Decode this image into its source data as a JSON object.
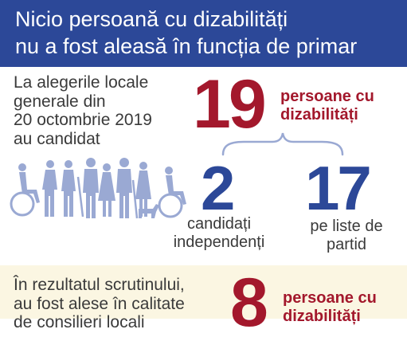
{
  "header": {
    "line1": "Nicio persoană cu dizabilități",
    "line2": "nu a fost aleasă în funcția de primar"
  },
  "intro": {
    "line1": "La alegerile locale",
    "line2": "generale din",
    "line3": "20 octombrie 2019",
    "line4": "au candidat"
  },
  "total": {
    "number": "19",
    "label_line1": "persoane cu",
    "label_line2": "dizabilități"
  },
  "independent": {
    "number": "2",
    "label_line1": "candidați",
    "label_line2": "independenți"
  },
  "party": {
    "number": "17",
    "label_line1": "pe liste de",
    "label_line2": "partid"
  },
  "result": {
    "line1": "În rezultatul scrutinului,",
    "line2": "au fost alese în calitate",
    "line3": "de consilieri locali",
    "number": "8",
    "label_line1": "persoane cu",
    "label_line2": "dizabilități"
  },
  "icons": {
    "people": "people-with-disabilities-icon",
    "brace": "curly-brace-icon"
  },
  "colors": {
    "blue": "#2c4898",
    "red": "#a3182c",
    "illustration": "#9aa9d3"
  }
}
